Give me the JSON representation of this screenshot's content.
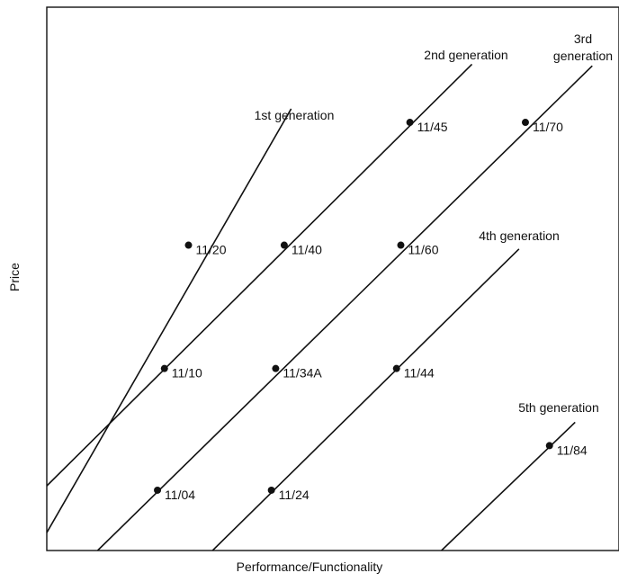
{
  "chart_data": {
    "type": "line",
    "xlabel": "Performance/Functionality",
    "ylabel": "Price",
    "grid": false,
    "legend": "none",
    "series": [
      {
        "name": "1st generation",
        "line": [
          [
            0.0,
            0.33
          ],
          [
            4.57,
            8.13
          ]
        ],
        "points": [
          {
            "label": "11/20",
            "x": 2.65,
            "y": 5.62
          }
        ]
      },
      {
        "name": "2nd generation",
        "line": [
          [
            0.0,
            1.19
          ],
          [
            7.95,
            8.95
          ]
        ],
        "points": [
          {
            "label": "11/10",
            "x": 2.2,
            "y": 3.35
          },
          {
            "label": "11/40",
            "x": 4.44,
            "y": 5.62
          },
          {
            "label": "11/45",
            "x": 6.79,
            "y": 7.88
          }
        ]
      },
      {
        "name": "3rd generation",
        "line": [
          [
            0.95,
            0.0
          ],
          [
            10.2,
            8.92
          ]
        ],
        "points": [
          {
            "label": "11/04",
            "x": 2.07,
            "y": 1.11
          },
          {
            "label": "11/34A",
            "x": 4.28,
            "y": 3.35
          },
          {
            "label": "11/60",
            "x": 6.62,
            "y": 5.62
          },
          {
            "label": "11/70",
            "x": 8.95,
            "y": 7.88
          }
        ]
      },
      {
        "name": "4th generation",
        "line": [
          [
            3.1,
            0.0
          ],
          [
            8.83,
            5.55
          ]
        ],
        "points": [
          {
            "label": "11/24",
            "x": 4.2,
            "y": 1.11
          },
          {
            "label": "11/44",
            "x": 6.54,
            "y": 3.35
          }
        ]
      },
      {
        "name": "5th generation",
        "line": [
          [
            7.38,
            0.0
          ],
          [
            9.88,
            2.36
          ]
        ],
        "points": [
          {
            "label": "11/84",
            "x": 9.4,
            "y": 1.93
          }
        ]
      }
    ],
    "xlim": [
      0,
      10.7
    ],
    "ylim": [
      0,
      10
    ]
  }
}
